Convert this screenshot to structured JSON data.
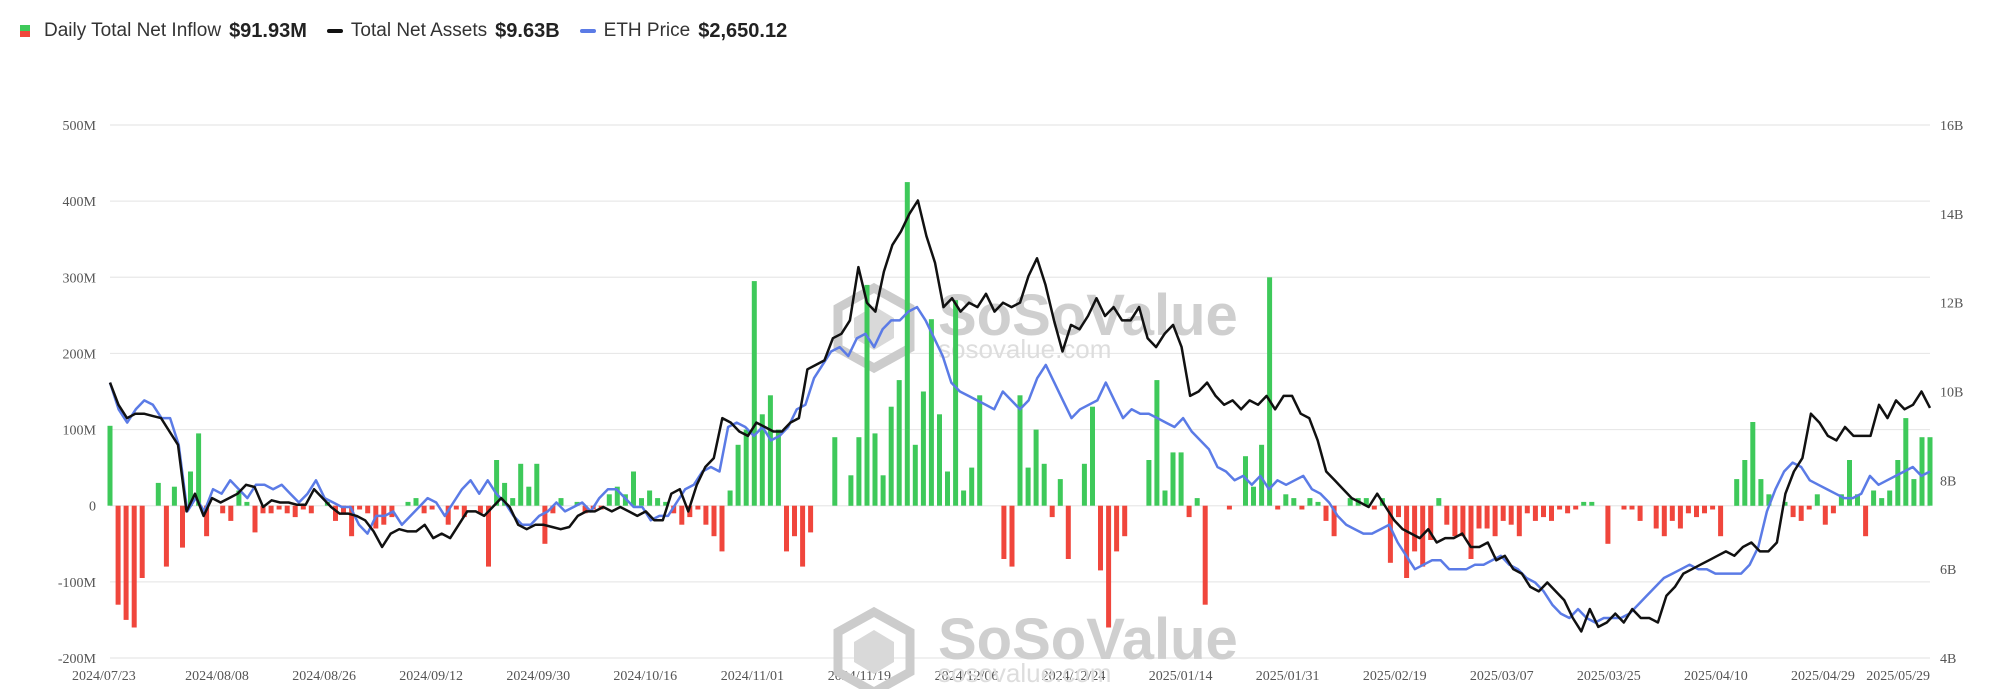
{
  "legend": {
    "inflow": {
      "label": "Daily Total Net Inflow",
      "value": "$91.93M"
    },
    "assets": {
      "label": "Total Net Assets",
      "value": "$9.63B"
    },
    "price": {
      "label": "ETH Price",
      "value": "$2,650.12"
    }
  },
  "watermark": {
    "brand": "SoSoValue",
    "site": "sosovalue.com"
  },
  "colors": {
    "positive": "#3ec95a",
    "negative": "#f0463c",
    "assets": "#111111",
    "price": "#5b7be6",
    "grid": "#e8e8e8"
  },
  "chart_data": {
    "type": "bar+line",
    "x_ticks": [
      "2024/07/23",
      "2024/08/08",
      "2024/08/26",
      "2024/09/12",
      "2024/09/30",
      "2024/10/16",
      "2024/11/01",
      "2024/11/19",
      "2024/12/06",
      "2024/12/24",
      "2025/01/14",
      "2025/01/31",
      "2025/02/19",
      "2025/03/07",
      "2025/03/25",
      "2025/04/10",
      "2025/04/29",
      "2025/05/29"
    ],
    "y_left_ticks": [
      "500M",
      "400M",
      "300M",
      "200M",
      "100M",
      "0",
      "-100M",
      "-200M"
    ],
    "y_left_range": [
      -200,
      500
    ],
    "y_right_ticks": [
      "16B",
      "14B",
      "12B",
      "10B",
      "8B",
      "6B",
      "4B"
    ],
    "y_right_range": [
      4,
      16
    ],
    "grid": true,
    "legend_position": "top-left",
    "series": [
      {
        "name": "Daily Total Net Inflow",
        "type": "bar",
        "unit": "M USD",
        "values": [
          105,
          -130,
          -150,
          -160,
          -95,
          0,
          30,
          -80,
          25,
          -55,
          45,
          95,
          -40,
          0,
          -10,
          -20,
          20,
          5,
          -35,
          -10,
          -10,
          -5,
          -10,
          -15,
          -5,
          -10,
          0,
          5,
          -20,
          -10,
          -40,
          -5,
          -10,
          -30,
          -25,
          -15,
          0,
          5,
          10,
          -10,
          -5,
          0,
          -25,
          -5,
          -15,
          0,
          -10,
          -80,
          60,
          30,
          10,
          55,
          25,
          55,
          -50,
          -10,
          10,
          0,
          5,
          -10,
          -5,
          -5,
          15,
          25,
          15,
          45,
          10,
          20,
          10,
          5,
          -10,
          -25,
          -15,
          -5,
          -25,
          -40,
          -60,
          20,
          80,
          100,
          295,
          120,
          145,
          100,
          -60,
          -40,
          -80,
          -35,
          0,
          0,
          90,
          0,
          40,
          90,
          290,
          95,
          40,
          130,
          165,
          425,
          80,
          150,
          245,
          120,
          45,
          270,
          20,
          50,
          145,
          0,
          0,
          -70,
          -80,
          145,
          50,
          100,
          55,
          -15,
          35,
          -70,
          0,
          55,
          130,
          -85,
          -160,
          -60,
          -40,
          0,
          0,
          60,
          165,
          20,
          70,
          70,
          -15,
          10,
          -130,
          0,
          0,
          -5,
          0,
          65,
          25,
          80,
          300,
          -5,
          15,
          10,
          -5,
          10,
          5,
          -20,
          -40,
          0,
          10,
          10,
          10,
          -5,
          10,
          -75,
          -15,
          -95,
          -60,
          -80,
          -45,
          10,
          -25,
          -40,
          -40,
          -70,
          -30,
          -30,
          -40,
          -20,
          -25,
          -40,
          -10,
          -20,
          -15,
          -20,
          -5,
          -10,
          -5,
          5,
          5,
          0,
          -50,
          0,
          -5,
          -5,
          -20,
          0,
          -30,
          -40,
          -20,
          -30,
          -10,
          -15,
          -10,
          -5,
          -40,
          0,
          35,
          60,
          110,
          35,
          15,
          0,
          5,
          -15,
          -20,
          -5,
          15,
          -25,
          -10,
          15,
          60,
          15,
          -40,
          20,
          10,
          20,
          60,
          115,
          35,
          90,
          90
        ]
      },
      {
        "name": "Total Net Assets",
        "type": "line",
        "unit": "B USD",
        "values": [
          10.2,
          9.7,
          9.4,
          9.5,
          9.5,
          9.45,
          9.4,
          9.1,
          8.8,
          7.3,
          7.7,
          7.2,
          7.6,
          7.5,
          7.6,
          7.7,
          7.9,
          7.85,
          7.4,
          7.55,
          7.5,
          7.5,
          7.45,
          7.45,
          7.8,
          7.6,
          7.4,
          7.25,
          7.25,
          7.2,
          7.1,
          6.85,
          6.5,
          6.8,
          6.9,
          6.85,
          6.85,
          7.0,
          6.7,
          6.8,
          6.7,
          7.0,
          7.3,
          7.3,
          7.2,
          7.4,
          7.6,
          7.4,
          7.0,
          6.9,
          7.0,
          7.0,
          6.95,
          6.9,
          6.95,
          7.2,
          7.3,
          7.3,
          7.4,
          7.3,
          7.4,
          7.3,
          7.2,
          7.3,
          7.1,
          7.1,
          7.7,
          7.8,
          7.3,
          7.9,
          8.3,
          8.5,
          9.4,
          9.3,
          9.1,
          9.0,
          9.3,
          9.2,
          9.1,
          9.1,
          9.3,
          9.4,
          10.5,
          10.6,
          10.7,
          11.2,
          11.3,
          11.6,
          12.8,
          12.0,
          11.8,
          12.7,
          13.3,
          13.6,
          14.0,
          14.3,
          13.5,
          12.9,
          11.9,
          12.1,
          11.8,
          12.0,
          11.9,
          12.2,
          11.8,
          12.0,
          11.9,
          12.0,
          12.6,
          13.0,
          12.4,
          11.6,
          10.9,
          11.5,
          11.4,
          11.7,
          12.1,
          11.7,
          11.9,
          11.6,
          11.6,
          11.9,
          11.2,
          11.0,
          11.3,
          11.5,
          11.0,
          9.9,
          10.0,
          10.2,
          9.9,
          9.7,
          9.8,
          9.6,
          9.8,
          9.7,
          9.9,
          9.6,
          9.9,
          9.9,
          9.5,
          9.4,
          8.9,
          8.2,
          8.0,
          7.8,
          7.6,
          7.5,
          7.4,
          7.7,
          7.4,
          7.1,
          6.9,
          6.8,
          6.7,
          6.9,
          6.6,
          6.7,
          6.7,
          6.8,
          6.5,
          6.5,
          6.6,
          6.2,
          6.3,
          6.0,
          5.9,
          5.6,
          5.5,
          5.7,
          5.5,
          5.3,
          4.9,
          4.6,
          5.1,
          4.7,
          4.8,
          5.0,
          4.8,
          5.1,
          4.9,
          4.9,
          4.8,
          5.4,
          5.6,
          5.9,
          6.0,
          6.1,
          6.2,
          6.3,
          6.4,
          6.3,
          6.5,
          6.6,
          6.4,
          6.4,
          6.6,
          7.7,
          8.2,
          8.5,
          9.5,
          9.3,
          9.0,
          8.9,
          9.2,
          9.0,
          9.0,
          9.0,
          9.7,
          9.4,
          9.8,
          9.6,
          9.7,
          10.0,
          9.63
        ]
      },
      {
        "name": "ETH Price",
        "type": "line",
        "unit": "B USD (right axis)",
        "values": [
          10.2,
          9.6,
          9.3,
          9.6,
          9.8,
          9.7,
          9.4,
          9.4,
          8.8,
          7.3,
          7.6,
          7.3,
          7.8,
          7.7,
          8.0,
          7.8,
          7.6,
          7.9,
          7.9,
          7.8,
          7.9,
          7.7,
          7.5,
          7.7,
          8.0,
          7.6,
          7.5,
          7.4,
          7.4,
          7.0,
          6.8,
          7.2,
          7.2,
          7.3,
          7.0,
          7.2,
          7.4,
          7.6,
          7.5,
          7.2,
          7.5,
          7.8,
          8.0,
          7.7,
          8.0,
          7.7,
          7.5,
          7.2,
          7.0,
          7.0,
          7.2,
          7.3,
          7.5,
          7.3,
          7.4,
          7.5,
          7.3,
          7.6,
          7.8,
          7.8,
          7.6,
          7.4,
          7.4,
          7.1,
          7.2,
          7.2,
          7.5,
          7.8,
          7.9,
          8.2,
          8.3,
          8.2,
          9.2,
          9.3,
          9.2,
          9.0,
          9.2,
          8.9,
          9.0,
          9.2,
          9.6,
          9.7,
          10.3,
          10.6,
          10.9,
          11.0,
          10.8,
          11.2,
          11.3,
          11.0,
          11.4,
          11.6,
          11.6,
          11.8,
          11.9,
          11.6,
          11.2,
          10.8,
          10.2,
          10.0,
          9.9,
          9.8,
          9.7,
          9.6,
          10.0,
          9.8,
          9.6,
          9.8,
          10.3,
          10.6,
          10.2,
          9.8,
          9.4,
          9.6,
          9.7,
          9.8,
          10.2,
          9.8,
          9.4,
          9.6,
          9.5,
          9.5,
          9.4,
          9.3,
          9.2,
          9.4,
          9.1,
          8.9,
          8.7,
          8.3,
          8.2,
          8.0,
          8.1,
          7.9,
          8.1,
          7.8,
          8.0,
          7.9,
          8.0,
          8.1,
          7.8,
          7.7,
          7.5,
          7.2,
          7.0,
          6.9,
          6.8,
          6.8,
          6.9,
          7.0,
          6.6,
          6.3,
          6.0,
          6.1,
          6.2,
          6.2,
          6.0,
          6.0,
          6.0,
          6.1,
          6.1,
          6.2,
          6.3,
          6.1,
          6.0,
          5.8,
          5.7,
          5.5,
          5.2,
          5.0,
          4.9,
          5.1,
          4.9,
          4.8,
          4.9,
          4.9,
          4.9,
          5.0,
          5.2,
          5.4,
          5.6,
          5.8,
          5.9,
          6.0,
          6.1,
          6.0,
          6.0,
          5.9,
          5.9,
          5.9,
          5.9,
          6.1,
          6.5,
          7.3,
          7.8,
          8.2,
          8.4,
          8.3,
          8.0,
          7.9,
          7.8,
          7.7,
          7.6,
          7.6,
          7.7,
          8.1,
          7.9,
          8.0,
          8.1,
          8.2,
          8.3,
          8.1,
          8.2
        ]
      }
    ]
  }
}
